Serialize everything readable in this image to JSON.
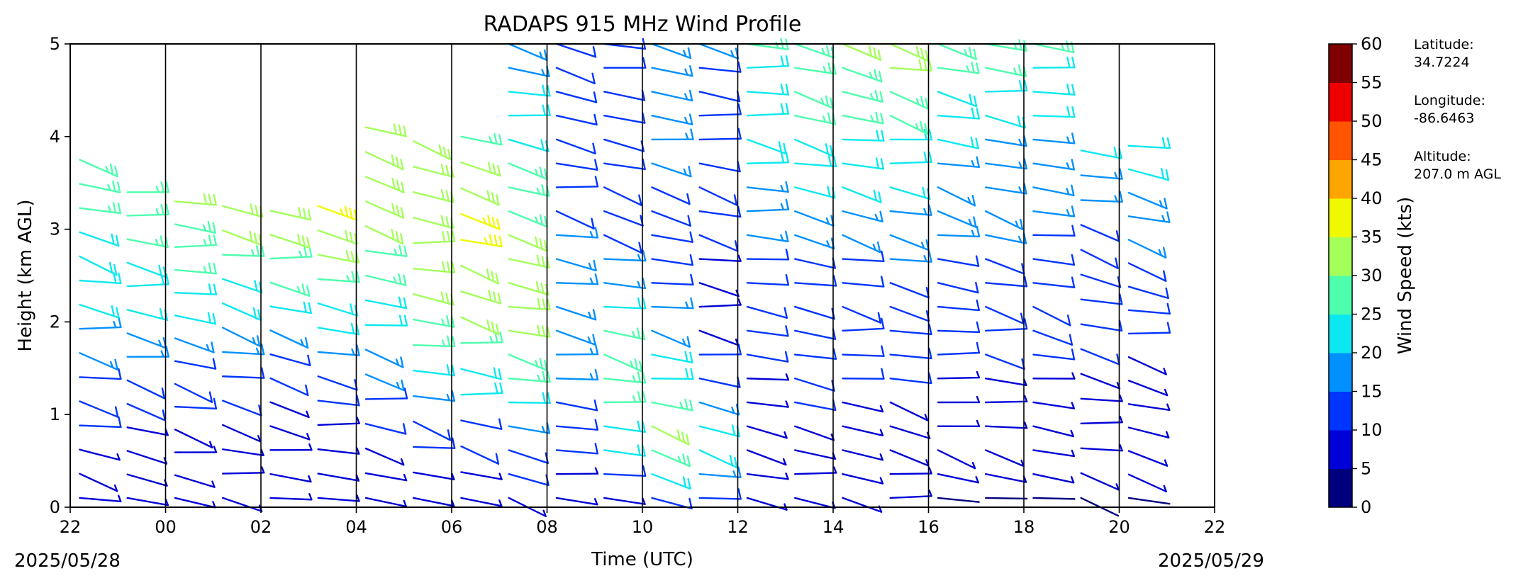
{
  "chart_data": {
    "type": "wind_barb_profile",
    "title": "RADAPS 915 MHz Wind Profile",
    "xlabel": "Time (UTC)",
    "ylabel": "Height (km AGL)",
    "x_ticks": [
      "22",
      "00",
      "02",
      "04",
      "06",
      "08",
      "10",
      "12",
      "14",
      "16",
      "18",
      "20",
      "22"
    ],
    "y_ticks": [
      "0",
      "1",
      "2",
      "3",
      "4",
      "5"
    ],
    "ylim": [
      0,
      5
    ],
    "start_date": "2025/05/28",
    "end_date": "2025/05/29",
    "colorbar": {
      "label": "Wind Speed (kts)",
      "ticks": [
        "0",
        "5",
        "10",
        "15",
        "20",
        "25",
        "30",
        "35",
        "40",
        "45",
        "50",
        "55",
        "60"
      ],
      "colors": [
        "#00007f",
        "#0000d8",
        "#0034ff",
        "#0090ff",
        "#0ce8f0",
        "#4dffad",
        "#a3ff5a",
        "#f0f900",
        "#ffa500",
        "#ff5400",
        "#ef0000",
        "#7f0000"
      ]
    },
    "site": {
      "latitude_label": "Latitude:",
      "latitude": "34.7224",
      "longitude_label": "Longitude:",
      "longitude": "-86.6463",
      "altitude_label": "Altitude:",
      "altitude": "207.0 m AGL"
    },
    "profiles": [
      {
        "hour": 22.2,
        "top": 3.75,
        "speed": [
          8,
          8,
          9,
          10,
          12,
          14,
          16,
          18,
          20,
          22,
          23,
          24,
          26,
          28,
          29
        ]
      },
      {
        "hour": 23.2,
        "top": 3.4,
        "speed": [
          7,
          8,
          8,
          9,
          11,
          13,
          15,
          18,
          20,
          22,
          24,
          26,
          27,
          29
        ]
      },
      {
        "hour": 0.2,
        "top": 3.3,
        "speed": [
          6,
          7,
          8,
          9,
          10,
          12,
          14,
          17,
          20,
          22,
          25,
          27,
          29,
          31
        ]
      },
      {
        "hour": 1.2,
        "top": 3.25,
        "speed": [
          6,
          7,
          8,
          9,
          10,
          12,
          15,
          18,
          21,
          24,
          27,
          30,
          32
        ]
      },
      {
        "hour": 2.2,
        "top": 3.2,
        "speed": [
          6,
          6,
          7,
          8,
          9,
          11,
          14,
          18,
          22,
          26,
          29,
          31,
          33
        ]
      },
      {
        "hour": 3.2,
        "top": 3.25,
        "speed": [
          5,
          6,
          7,
          8,
          10,
          13,
          16,
          20,
          24,
          28,
          31,
          34,
          36
        ]
      },
      {
        "hour": 4.2,
        "top": 4.1,
        "speed": [
          5,
          6,
          8,
          10,
          12,
          15,
          18,
          21,
          24,
          27,
          29,
          31,
          32,
          33,
          33,
          32
        ]
      },
      {
        "hour": 5.2,
        "top": 3.95,
        "speed": [
          6,
          8,
          10,
          14,
          18,
          22,
          25,
          28,
          30,
          32,
          33,
          34,
          33,
          31,
          30
        ]
      },
      {
        "hour": 6.2,
        "top": 4.0,
        "speed": [
          6,
          8,
          10,
          14,
          20,
          24,
          27,
          30,
          32,
          34,
          36,
          35,
          33,
          31,
          29
        ]
      },
      {
        "hour": 7.2,
        "top": 5.0,
        "speed": [
          7,
          10,
          14,
          19,
          24,
          27,
          29,
          31,
          33,
          34,
          33,
          31,
          29,
          27,
          25,
          23,
          21,
          20,
          19,
          18
        ]
      },
      {
        "hour": 8.2,
        "top": 5.0,
        "speed": [
          6,
          8,
          10,
          12,
          14,
          16,
          17,
          18,
          18,
          17,
          16,
          15,
          14,
          13,
          12,
          12,
          11,
          11,
          10,
          10
        ]
      },
      {
        "hour": 9.2,
        "top": 5.0,
        "speed": [
          8,
          14,
          20,
          24,
          27,
          28,
          27,
          25,
          22,
          19,
          16,
          14,
          12,
          11,
          10,
          10,
          10,
          11,
          11,
          12
        ]
      },
      {
        "hour": 10.2,
        "top": 5.0,
        "speed": [
          14,
          20,
          26,
          30,
          28,
          24,
          20,
          17,
          15,
          13,
          12,
          12,
          13,
          14,
          15,
          16,
          16,
          17,
          17,
          18
        ]
      },
      {
        "hour": 11.2,
        "top": 5.0,
        "speed": [
          12,
          16,
          20,
          22,
          18,
          14,
          11,
          9,
          8,
          8,
          9,
          10,
          11,
          12,
          12,
          13,
          13,
          14,
          14,
          15
        ]
      },
      {
        "hour": 12.2,
        "top": 5.0,
        "speed": [
          6,
          7,
          8,
          9,
          9,
          9,
          10,
          10,
          11,
          12,
          13,
          15,
          17,
          19,
          21,
          22,
          23,
          24,
          24,
          25
        ]
      },
      {
        "hour": 13.2,
        "top": 5.0,
        "speed": [
          6,
          7,
          8,
          9,
          10,
          10,
          11,
          11,
          12,
          13,
          14,
          16,
          18,
          20,
          22,
          24,
          25,
          26,
          27,
          27
        ]
      },
      {
        "hour": 14.2,
        "top": 5.0,
        "speed": [
          5,
          6,
          7,
          8,
          9,
          10,
          10,
          11,
          12,
          13,
          14,
          16,
          18,
          20,
          22,
          24,
          26,
          28,
          29,
          30
        ]
      },
      {
        "hour": 15.2,
        "top": 5.0,
        "speed": [
          5,
          6,
          7,
          8,
          9,
          10,
          11,
          12,
          13,
          14,
          15,
          16,
          18,
          20,
          22,
          24,
          26,
          28,
          30,
          32
        ]
      },
      {
        "hour": 16.2,
        "top": 5.0,
        "speed": [
          4,
          5,
          6,
          7,
          8,
          9,
          10,
          11,
          12,
          13,
          14,
          15,
          16,
          17,
          18,
          20,
          22,
          24,
          26,
          28
        ]
      },
      {
        "hour": 17.2,
        "top": 5.0,
        "speed": [
          4,
          5,
          6,
          7,
          8,
          9,
          10,
          11,
          12,
          13,
          14,
          15,
          16,
          17,
          18,
          19,
          21,
          23,
          25,
          26
        ]
      },
      {
        "hour": 18.2,
        "top": 5.0,
        "speed": [
          4,
          5,
          6,
          7,
          8,
          9,
          10,
          10,
          11,
          12,
          13,
          14,
          15,
          16,
          17,
          18,
          20,
          22,
          24,
          25
        ]
      },
      {
        "hour": 19.2,
        "top": 3.85,
        "speed": [
          4,
          5,
          6,
          7,
          8,
          9,
          10,
          10,
          11,
          12,
          13,
          14,
          16,
          18,
          20
        ]
      },
      {
        "hour": 20.2,
        "top": 3.9,
        "speed": [
          4,
          5,
          6,
          7,
          8,
          8,
          9,
          10,
          11,
          12,
          13,
          15,
          17,
          19,
          21,
          23
        ]
      }
    ]
  }
}
